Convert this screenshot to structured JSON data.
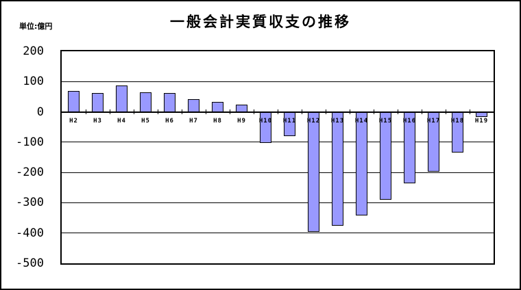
{
  "chart_data": {
    "type": "bar",
    "title": "一般会計実質収支の推移",
    "unit_label": "単位:億円",
    "categories": [
      "H2",
      "H3",
      "H4",
      "H5",
      "H6",
      "H7",
      "H8",
      "H9",
      "H10",
      "H11",
      "H12",
      "H13",
      "H14",
      "H15",
      "H16",
      "H17",
      "H18",
      "H19"
    ],
    "values": [
      69,
      62,
      86,
      65,
      63,
      43,
      34,
      25,
      -103,
      -80,
      -396,
      -375,
      -341,
      -289,
      -235,
      -197,
      -134,
      -16
    ],
    "xlabel": "",
    "ylabel": "",
    "ylim": [
      -500,
      200
    ],
    "yticks": [
      200,
      100,
      0,
      -100,
      -200,
      -300,
      -400,
      -500
    ],
    "grid": "horizontal",
    "legend": "none",
    "colors": {
      "bar_fill": "#9999FF",
      "bar_border": "#000000",
      "gridline": "#000000",
      "text": "#000000",
      "background": "#FFFFFF",
      "frame_border": "#000000"
    }
  }
}
